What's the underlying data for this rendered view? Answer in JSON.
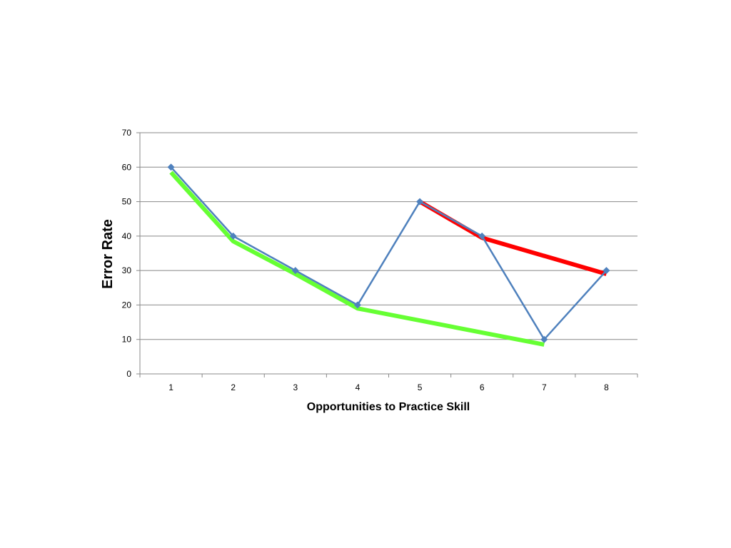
{
  "chart_data": {
    "type": "line",
    "title": "",
    "xlabel": "Opportunities to Practice Skill",
    "ylabel": "Error Rate",
    "x": [
      1,
      2,
      3,
      4,
      5,
      6,
      7,
      8
    ],
    "xlim": [
      0.5,
      8.5
    ],
    "ylim": [
      0,
      70
    ],
    "yticks": [
      0,
      10,
      20,
      30,
      40,
      50,
      60,
      70
    ],
    "grid": true,
    "legend": "none",
    "series": [
      {
        "x": [
          1,
          2,
          3,
          4,
          5,
          6,
          7,
          8
        ],
        "values": [
          60,
          40,
          30,
          20,
          50,
          40,
          10,
          30
        ],
        "color": "#4F81BD",
        "marker": "diamond"
      },
      {
        "x": [
          1,
          2,
          3,
          4,
          7
        ],
        "values": [
          58.5,
          38.5,
          29,
          19,
          8.5
        ],
        "color": "#66FF33",
        "marker": "none"
      },
      {
        "x": [
          5,
          6,
          8
        ],
        "values": [
          50,
          39.5,
          29
        ],
        "color": "#FF0000",
        "marker": "none"
      }
    ]
  }
}
